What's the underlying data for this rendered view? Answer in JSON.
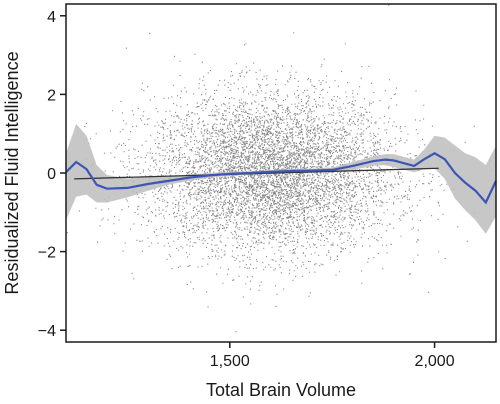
{
  "chart_data": {
    "type": "scatter",
    "title": "",
    "xlabel": "Total Brain Volume",
    "ylabel": "Residualized Fluid Intelligence",
    "xlim": [
      1100,
      2150
    ],
    "ylim": [
      -4.3,
      4.3
    ],
    "x_ticks": [
      1500,
      2000
    ],
    "x_tick_labels": [
      "1,500",
      "2,000"
    ],
    "y_ticks": [
      -4,
      -2,
      0,
      2,
      4
    ],
    "y_tick_labels": [
      "−4",
      "−2",
      "0",
      "2",
      "4"
    ],
    "grid": false,
    "legend": "none",
    "scatter_cloud": {
      "color": "#6b6b6b",
      "approx_count": 9000,
      "center": [
        1600,
        0
      ],
      "x_sd": 150,
      "y_sd": 1.0
    },
    "series": [
      {
        "type": "loess",
        "color": "#3d55b4",
        "band_color": "#bdbdbd",
        "x": [
          1100,
          1125,
          1150,
          1175,
          1200,
          1250,
          1300,
          1350,
          1400,
          1450,
          1500,
          1550,
          1600,
          1650,
          1700,
          1750,
          1800,
          1850,
          1880,
          1900,
          1950,
          1975,
          2000,
          2025,
          2050,
          2075,
          2100,
          2125,
          2150
        ],
        "y": [
          0.02,
          0.28,
          0.1,
          -0.3,
          -0.4,
          -0.38,
          -0.28,
          -0.2,
          -0.12,
          -0.06,
          -0.02,
          0.0,
          0.03,
          0.05,
          0.06,
          0.08,
          0.18,
          0.3,
          0.34,
          0.32,
          0.18,
          0.35,
          0.5,
          0.35,
          0.0,
          -0.25,
          -0.45,
          -0.75,
          -0.2
        ],
        "lower": [
          -1.2,
          -0.6,
          -0.55,
          -0.75,
          -0.75,
          -0.62,
          -0.45,
          -0.3,
          -0.2,
          -0.12,
          -0.07,
          -0.04,
          -0.02,
          0.0,
          0.01,
          0.02,
          0.08,
          0.18,
          0.2,
          0.15,
          0.02,
          0.1,
          0.12,
          -0.15,
          -0.65,
          -0.95,
          -1.2,
          -1.55,
          -1.1
        ],
        "upper": [
          0.5,
          1.25,
          0.95,
          0.2,
          -0.05,
          -0.14,
          -0.1,
          -0.1,
          -0.04,
          0.0,
          0.03,
          0.04,
          0.08,
          0.1,
          0.11,
          0.14,
          0.28,
          0.42,
          0.48,
          0.48,
          0.34,
          0.6,
          0.95,
          0.9,
          0.7,
          0.5,
          0.4,
          0.2,
          0.7
        ]
      },
      {
        "type": "linear",
        "color": "#333333",
        "x": [
          1120,
          2010
        ],
        "y": [
          -0.15,
          0.12
        ]
      }
    ]
  }
}
